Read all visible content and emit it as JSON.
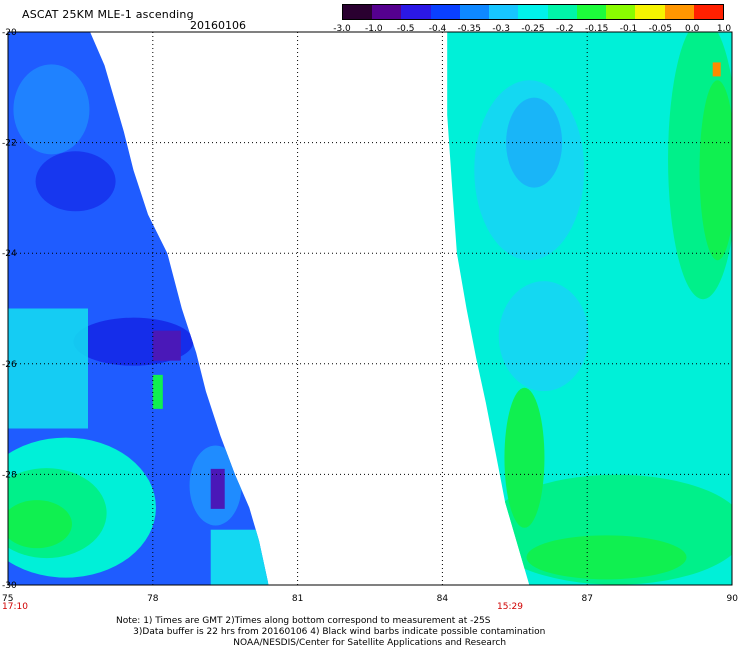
{
  "header": {
    "title": "ASCAT 25KM MLE-1 ascending",
    "date": "20160106"
  },
  "colorbar": {
    "labels": [
      "-3.0",
      "-1.0",
      "-0.5",
      "-0.4",
      "-0.35",
      "-0.3",
      "-0.25",
      "-0.2",
      "-0.15",
      "-0.1",
      "-0.05",
      "0.0",
      "1.0"
    ],
    "colors": [
      "#2a0030",
      "#55008f",
      "#2b18e6",
      "#0a40ff",
      "#0e88ff",
      "#17c6ff",
      "#00f2ea",
      "#00f5a8",
      "#1dfc3b",
      "#8afc00",
      "#f6f400",
      "#ff9600",
      "#ff2000"
    ]
  },
  "map_data": {
    "x_range": [
      75,
      90
    ],
    "y_range": [
      -30,
      -20
    ],
    "x_ticks": [
      "75",
      "78",
      "81",
      "84",
      "87",
      "90"
    ],
    "y_ticks": [
      "-20",
      "-22",
      "-24",
      "-26",
      "-28",
      "-30"
    ],
    "times": [
      {
        "label": "17:10",
        "lon": 75
      },
      {
        "label": "15:29",
        "lon": 85.4
      }
    ],
    "colors": {
      "blue": "#1f5cff",
      "mid_blue": "#1f8cff",
      "dark_blue": "#1428e8",
      "purple": "#4a18b8",
      "cyan": "#14d8f2",
      "aqua": "#00f0d8",
      "green": "#00f08a",
      "lime": "#10f050",
      "orange": "#ff8a00"
    },
    "left_swath": [
      {
        "lon": 75.0,
        "lat": -20.0
      },
      {
        "lon": 76.7,
        "lat": -20.0
      },
      {
        "lon": 77.0,
        "lat": -20.6
      },
      {
        "lon": 77.4,
        "lat": -21.8
      },
      {
        "lon": 77.6,
        "lat": -22.5
      },
      {
        "lon": 77.9,
        "lat": -23.3
      },
      {
        "lon": 78.3,
        "lat": -24.0
      },
      {
        "lon": 78.6,
        "lat": -25.0
      },
      {
        "lon": 78.9,
        "lat": -25.8
      },
      {
        "lon": 79.1,
        "lat": -26.5
      },
      {
        "lon": 79.4,
        "lat": -27.3
      },
      {
        "lon": 79.7,
        "lat": -28.0
      },
      {
        "lon": 80.0,
        "lat": -28.6
      },
      {
        "lon": 80.2,
        "lat": -29.2
      },
      {
        "lon": 80.3,
        "lat": -29.6
      },
      {
        "lon": 80.4,
        "lat": -30.0
      },
      {
        "lon": 75.0,
        "lat": -30.0
      }
    ],
    "right_swath": [
      {
        "lon": 84.1,
        "lat": -20.0
      },
      {
        "lon": 90.0,
        "lat": -20.0
      },
      {
        "lon": 90.0,
        "lat": -30.0
      },
      {
        "lon": 85.8,
        "lat": -30.0
      },
      {
        "lon": 85.6,
        "lat": -29.4
      },
      {
        "lon": 85.3,
        "lat": -28.5
      },
      {
        "lon": 85.1,
        "lat": -27.6
      },
      {
        "lon": 84.9,
        "lat": -26.7
      },
      {
        "lon": 84.7,
        "lat": -25.9
      },
      {
        "lon": 84.5,
        "lat": -25.0
      },
      {
        "lon": 84.3,
        "lat": -24.0
      },
      {
        "lon": 84.2,
        "lat": -22.8
      },
      {
        "lon": 84.1,
        "lat": -21.5
      }
    ]
  },
  "notes": [
    "Note: 1) Times are GMT 2)Times along bottom correspond to measurement at -25S",
    "      3)Data buffer is 22 hrs from 20160106 4) Black wind barbs indicate possible contamination",
    "                                         NOAA/NESDIS/Center for Satellite Applications and Research"
  ]
}
